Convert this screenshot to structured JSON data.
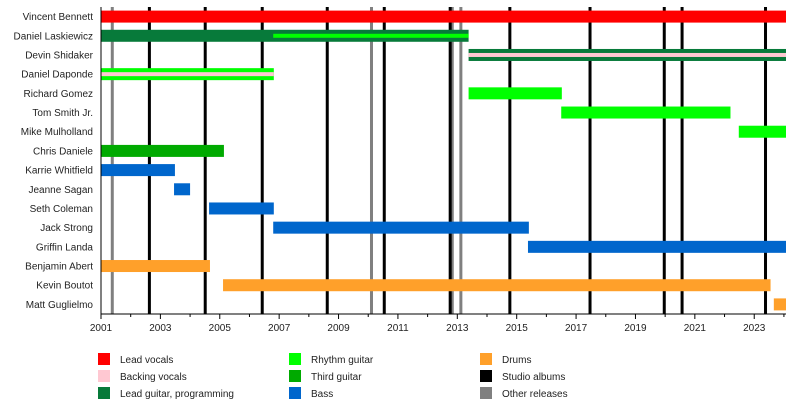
{
  "chart_data": {
    "type": "timeline",
    "xlim": [
      2001,
      2024.07
    ],
    "x_ticks": [
      2001,
      2003,
      2005,
      2007,
      2009,
      2011,
      2013,
      2015,
      2017,
      2019,
      2021,
      2023
    ],
    "grid": false,
    "legend_position": "bottom",
    "roles": {
      "lead_vocals": {
        "label": "Lead vocals",
        "color": "#FF0000"
      },
      "backing_vocals": {
        "label": "Backing vocals",
        "color": "#FFC8D2"
      },
      "lead_guitar": {
        "label": "Lead guitar, programming",
        "color": "#077A3A"
      },
      "rhythm_guitar": {
        "label": "Rhythm guitar",
        "color": "#00FF00"
      },
      "third_guitar": {
        "label": "Third guitar",
        "color": "#00AA00"
      },
      "bass": {
        "label": "Bass",
        "color": "#0066CC"
      },
      "drums": {
        "label": "Drums",
        "color": "#FFA02A"
      },
      "studio_albums": {
        "label": "Studio albums",
        "color": "#000000"
      },
      "other_releases": {
        "label": "Other releases",
        "color": "#808080"
      }
    },
    "legend_order": [
      [
        "lead_vocals",
        "backing_vocals",
        "lead_guitar"
      ],
      [
        "rhythm_guitar",
        "third_guitar",
        "bass"
      ],
      [
        "drums",
        "studio_albums",
        "other_releases"
      ]
    ],
    "members": [
      {
        "name": "Vincent Bennett",
        "bars": [
          {
            "start": 2001,
            "end": 2024.07,
            "role": "lead_vocals"
          }
        ]
      },
      {
        "name": "Daniel Laskiewicz",
        "bars": [
          {
            "start": 2001,
            "end": 2013.38,
            "role": "lead_guitar"
          },
          {
            "start": 2006.8,
            "end": 2013.38,
            "role": "rhythm_guitar",
            "stripe": true
          }
        ]
      },
      {
        "name": "Devin Shidaker",
        "bars": [
          {
            "start": 2013.38,
            "end": 2024.07,
            "role": "lead_guitar"
          },
          {
            "start": 2013.38,
            "end": 2024.07,
            "role": "backing_vocals",
            "stripe": true
          }
        ]
      },
      {
        "name": "Daniel Daponde",
        "bars": [
          {
            "start": 2001,
            "end": 2006.82,
            "role": "rhythm_guitar"
          },
          {
            "start": 2001,
            "end": 2006.82,
            "role": "backing_vocals",
            "stripe": true
          }
        ]
      },
      {
        "name": "Richard Gomez",
        "bars": [
          {
            "start": 2013.38,
            "end": 2016.52,
            "role": "rhythm_guitar"
          }
        ]
      },
      {
        "name": "Tom Smith Jr.",
        "bars": [
          {
            "start": 2016.5,
            "end": 2022.2,
            "role": "rhythm_guitar"
          }
        ]
      },
      {
        "name": "Mike Mulholland",
        "bars": [
          {
            "start": 2022.48,
            "end": 2024.07,
            "role": "rhythm_guitar"
          }
        ]
      },
      {
        "name": "Chris Daniele",
        "bars": [
          {
            "start": 2001,
            "end": 2005.14,
            "role": "third_guitar"
          }
        ]
      },
      {
        "name": "Karrie Whitfield",
        "bars": [
          {
            "start": 2001,
            "end": 2003.49,
            "role": "bass"
          }
        ]
      },
      {
        "name": "Jeanne Sagan",
        "bars": [
          {
            "start": 2003.46,
            "end": 2004.0,
            "role": "bass"
          }
        ]
      },
      {
        "name": "Seth Coleman",
        "bars": [
          {
            "start": 2004.64,
            "end": 2006.82,
            "role": "bass"
          }
        ]
      },
      {
        "name": "Jack Strong",
        "bars": [
          {
            "start": 2006.8,
            "end": 2015.41,
            "role": "bass"
          }
        ]
      },
      {
        "name": "Griffin Landa",
        "bars": [
          {
            "start": 2015.38,
            "end": 2024.07,
            "role": "bass"
          }
        ]
      },
      {
        "name": "Benjamin Abert",
        "bars": [
          {
            "start": 2001,
            "end": 2004.67,
            "role": "drums"
          }
        ]
      },
      {
        "name": "Kevin Boutot",
        "bars": [
          {
            "start": 2005.11,
            "end": 2023.55,
            "role": "drums"
          }
        ]
      },
      {
        "name": "Matt Guglielmo",
        "bars": [
          {
            "start": 2023.66,
            "end": 2024.07,
            "role": "drums"
          }
        ]
      }
    ],
    "studio_albums": [
      2002.63,
      2004.51,
      2006.43,
      2008.62,
      2010.54,
      2012.76,
      2014.77,
      2017.47,
      2019.97,
      2020.57,
      2023.38
    ],
    "other_releases": [
      2001.38,
      2010.11,
      2012.83,
      2013.12
    ]
  }
}
